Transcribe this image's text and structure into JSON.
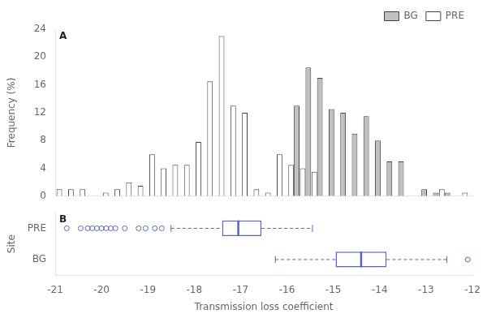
{
  "chart_data": [
    {
      "type": "bar",
      "ylabel": "Frequency (%)",
      "annotations": [
        "A"
      ],
      "x": [
        -20.85,
        -20.6,
        -20.35,
        -19.85,
        -19.6,
        -19.35,
        -19.1,
        -18.85,
        -18.6,
        -18.35,
        -18.1,
        -17.85,
        -17.6,
        -17.35,
        -17.1,
        -16.85,
        -16.6,
        -16.35,
        -16.1,
        -15.85,
        -15.6,
        -15.35,
        -15.1,
        -14.85,
        -14.6,
        -14.35,
        -14.1,
        -13.85,
        -13.6,
        -13.35,
        -13.1,
        -12.85,
        -12.6,
        -12.35,
        -12.1
      ],
      "series": [
        {
          "name": "PRE",
          "color": "#ffffff",
          "values": [
            1.0,
            1.0,
            1.0,
            0.5,
            1.0,
            2.0,
            1.5,
            6.0,
            4.0,
            4.5,
            4.5,
            7.8,
            16.5,
            23.0,
            13.0,
            12.0,
            1.0,
            0.5,
            6.0,
            4.5,
            4.0,
            3.5,
            0.0,
            0.0,
            0.0,
            0.0,
            0.0,
            0.0,
            0.0,
            0.0,
            0.0,
            0.0,
            1.0,
            0.0,
            0.5
          ]
        },
        {
          "name": "BG",
          "color": "#c0c0c0",
          "values": [
            0.0,
            0.0,
            0.0,
            0.0,
            0.0,
            0.0,
            0.0,
            0.0,
            0.0,
            0.0,
            0.0,
            0.0,
            0.0,
            0.0,
            0.0,
            0.0,
            0.0,
            0.0,
            0.0,
            13.0,
            18.5,
            17.0,
            12.5,
            12.0,
            9.0,
            11.5,
            8.0,
            5.0,
            5.0,
            0.0,
            1.0,
            0.5,
            0.5,
            0.0,
            0.0
          ]
        }
      ],
      "xlim": [
        -21,
        -12
      ],
      "ylim": [
        0,
        24
      ],
      "yticks": [
        0,
        4,
        8,
        12,
        16,
        20,
        24
      ],
      "legend": "upper right",
      "grid": false,
      "tick_labels": "y"
    },
    {
      "type": "box",
      "xlabel": "Transmission loss coefficient",
      "ylabel": "Site",
      "annotations": [
        "B"
      ],
      "color": "#5566bb",
      "series": [
        {
          "name": "PRE",
          "whisker_low": -18.5,
          "q1": -17.4,
          "median": -17.05,
          "q3": -16.55,
          "whisker_high": -15.45,
          "outliers": [
            -20.75,
            -20.45,
            -20.3,
            -20.2,
            -20.1,
            -20.0,
            -19.9,
            -19.8,
            -19.7,
            -19.5,
            -19.2,
            -19.05,
            -18.85,
            -18.7
          ]
        },
        {
          "name": "BG",
          "whisker_low": -16.25,
          "q1": -14.95,
          "median": -14.4,
          "q3": -13.85,
          "whisker_high": -12.55,
          "outliers": [
            -12.1
          ]
        }
      ],
      "xlim": [
        -21,
        -12
      ],
      "xticks": [
        -21,
        -20,
        -19,
        -18,
        -17,
        -16,
        -15,
        -14,
        -13,
        -12
      ],
      "grid": false
    }
  ]
}
